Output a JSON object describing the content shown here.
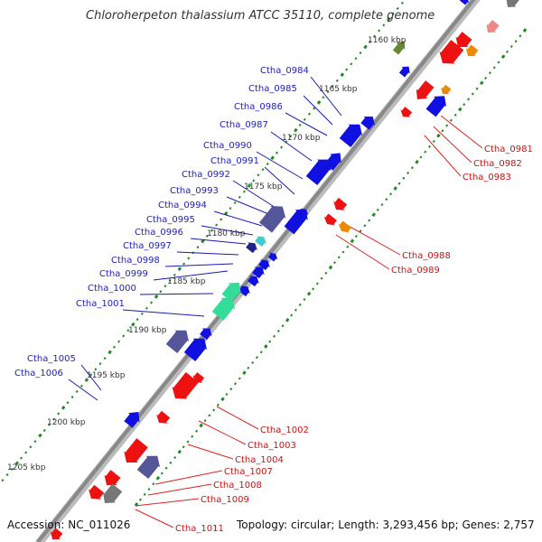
{
  "map": {
    "title": "Chloroherpeton thalassium ATCC 35110, complete genome",
    "accession": "Accession: NC_011026",
    "summary": "Topology: circular; Length: 3,293,456 bp; Genes: 2,757",
    "kbp_labels": [
      "1160 kbp",
      "1165 kbp",
      "1170 kbp",
      "1175 kbp",
      "1180 kbp",
      "1185 kbp",
      "1190 kbp",
      "1195 kbp",
      "1200 kbp",
      "1205 kbp"
    ],
    "forward_genes": [
      "Ctha_0984",
      "Ctha_0985",
      "Ctha_0986",
      "Ctha_0987",
      "Ctha_0990",
      "Ctha_0991",
      "Ctha_0992",
      "Ctha_0993",
      "Ctha_0994",
      "Ctha_0995",
      "Ctha_0996",
      "Ctha_0997",
      "Ctha_0998",
      "Ctha_0999",
      "Ctha_1000",
      "Ctha_1001",
      "Ctha_1005",
      "Ctha_1006"
    ],
    "reverse_genes": [
      "Ctha_0981",
      "Ctha_0982",
      "Ctha_0983",
      "Ctha_0988",
      "Ctha_0989",
      "Ctha_1002",
      "Ctha_1003",
      "Ctha_1004",
      "Ctha_1007",
      "Ctha_1008",
      "Ctha_1009",
      "Ctha_1011"
    ],
    "colors": {
      "forward": "#1010e0",
      "reverse": "#ee1111",
      "forward_label": "#2020c0",
      "reverse_label": "#cc1111",
      "backbone": "#888888",
      "slate": "#55559a",
      "green_tick": "#228822"
    }
  }
}
